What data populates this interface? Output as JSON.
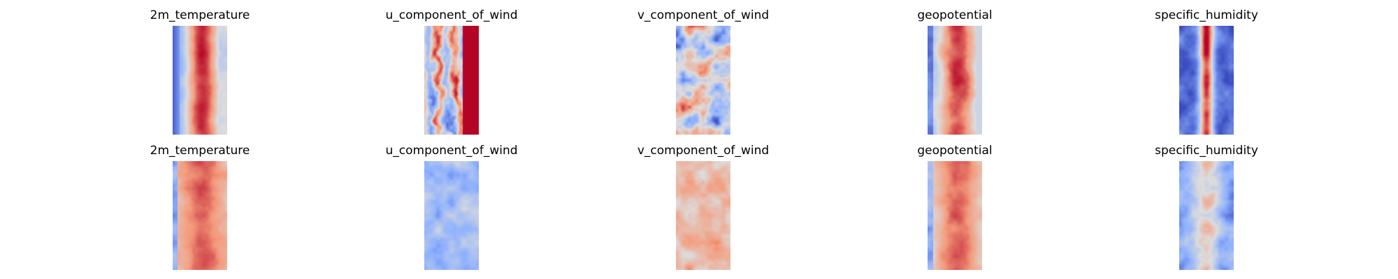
{
  "chart_data": {
    "type": "heatmap",
    "colormap": "coolwarm",
    "colors": {
      "cold": "#3b4cc0",
      "neutral": "#dddddd",
      "warm": "#b40426"
    },
    "grid": false,
    "axes_visible": false,
    "rows": [
      {
        "panels": [
          {
            "title": "2m_temperature",
            "pattern": "temp-strong"
          },
          {
            "title": "u_component_of_wind",
            "pattern": "wind-mixed"
          },
          {
            "title": "v_component_of_wind",
            "pattern": "wind-speckle"
          },
          {
            "title": "geopotential",
            "pattern": "geo-strong"
          },
          {
            "title": "specific_humidity",
            "pattern": "humidity-strong"
          }
        ]
      },
      {
        "panels": [
          {
            "title": "2m_temperature",
            "pattern": "temp-soft"
          },
          {
            "title": "u_component_of_wind",
            "pattern": "wind-cool"
          },
          {
            "title": "v_component_of_wind",
            "pattern": "wind-warm"
          },
          {
            "title": "geopotential",
            "pattern": "geo-soft"
          },
          {
            "title": "specific_humidity",
            "pattern": "humidity-soft"
          }
        ]
      }
    ]
  }
}
